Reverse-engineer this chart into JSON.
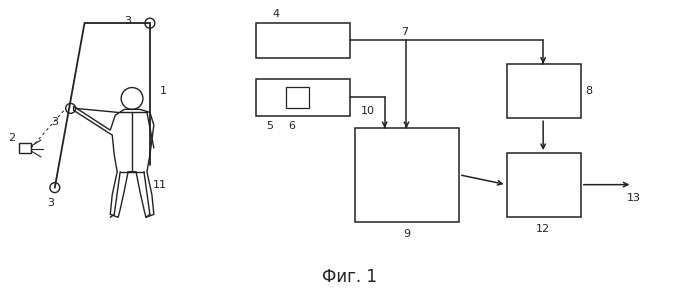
{
  "background_color": "#ffffff",
  "title": "Фиг. 1",
  "title_fontsize": 12,
  "fig_width": 6.98,
  "fig_height": 2.95,
  "dpi": 100
}
